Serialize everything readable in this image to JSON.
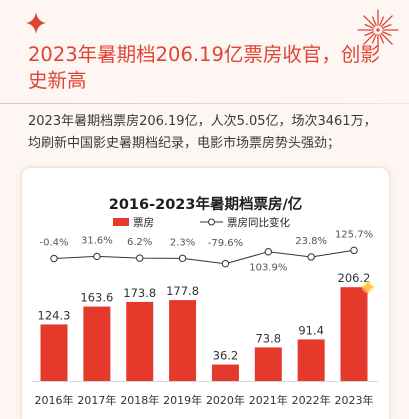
{
  "header": {
    "title": "2023年暑期档206.19亿票房收官，创影史新高"
  },
  "intro": {
    "text": "2023年暑期档票房206.19亿，人次5.05亿，场次3461万，均刷新中国影史暑期档纪录，电影市场票房势头强劲；"
  },
  "decorations": {
    "top_left_icon": "sparkle-icon",
    "top_right_icon": "firework-icon",
    "bar_highlight_icon": "sparkle-icon"
  },
  "colors": {
    "accent": "#df4535",
    "bar": "#e5392c",
    "line": "#333333",
    "background": "#fdf6f2",
    "card": "#ffffff"
  },
  "chart_data": {
    "type": "bar",
    "title": "2016-2023年暑期档票房/亿",
    "categories": [
      "2016年",
      "2017年",
      "2018年",
      "2019年",
      "2020年",
      "2021年",
      "2022年",
      "2023年"
    ],
    "series": [
      {
        "name": "票房",
        "type": "bar",
        "values": [
          124.3,
          163.6,
          173.8,
          177.8,
          36.2,
          73.8,
          91.4,
          206.2
        ]
      },
      {
        "name": "票房同比变化",
        "type": "line",
        "unit": "%",
        "values": [
          -0.4,
          31.6,
          6.2,
          2.3,
          -79.6,
          103.9,
          23.8,
          125.7
        ]
      }
    ],
    "legend": "top",
    "grid": false,
    "data_labels": true
  }
}
